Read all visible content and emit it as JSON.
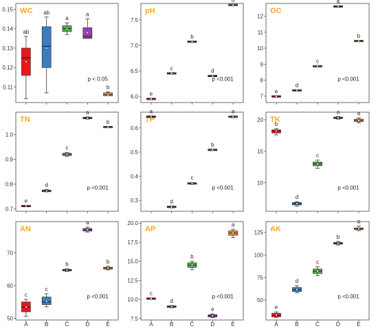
{
  "colors": {
    "title": "#F5A623",
    "frame": "#444444",
    "groups": {
      "A": "#E41A1C",
      "B": "#3A7DBF",
      "C": "#4DAF4A",
      "D": "#9C3FB5",
      "E": "#F08A24"
    }
  },
  "chart_data": [
    {
      "type": "box",
      "title": "WC",
      "ptext": "p < 0.05",
      "ylim": [
        0.102,
        0.153
      ],
      "yticks": [
        {
          "v": 0.11,
          "l": "0.11"
        },
        {
          "v": 0.12,
          "l": "0.12"
        },
        {
          "v": 0.13,
          "l": "0.13"
        },
        {
          "v": 0.14,
          "l": "0.14"
        },
        {
          "v": 0.15,
          "l": "0.15"
        }
      ],
      "categories": [
        "A",
        "B",
        "C",
        "D",
        "E"
      ],
      "boxes": [
        {
          "g": "A",
          "min": 0.104,
          "q1": 0.116,
          "med": 0.125,
          "q3": 0.13,
          "max": 0.136,
          "mean": 0.123,
          "sig": "ab"
        },
        {
          "g": "B",
          "min": 0.107,
          "q1": 0.12,
          "med": 0.131,
          "q3": 0.141,
          "max": 0.146,
          "mean": 0.13,
          "sig": "ab"
        },
        {
          "g": "C",
          "min": 0.137,
          "q1": 0.1385,
          "med": 0.14,
          "q3": 0.1415,
          "max": 0.143,
          "mean": 0.1398,
          "sig": "a"
        },
        {
          "g": "D",
          "min": 0.135,
          "q1": 0.135,
          "med": 0.136,
          "q3": 0.1405,
          "max": 0.145,
          "mean": 0.138,
          "sig": "a"
        },
        {
          "g": "E",
          "min": 0.1055,
          "q1": 0.1055,
          "med": 0.106,
          "q3": 0.107,
          "max": 0.1075,
          "mean": 0.106,
          "sig": "b"
        }
      ]
    },
    {
      "type": "box",
      "title": "pH",
      "ptext": "p <0.001",
      "ylim": [
        5.88,
        7.82
      ],
      "yticks": [
        {
          "v": 6.0,
          "l": "6.0"
        },
        {
          "v": 6.5,
          "l": "6.5"
        },
        {
          "v": 7.0,
          "l": "7.0"
        },
        {
          "v": 7.5,
          "l": "7.5"
        }
      ],
      "categories": [
        "A",
        "B",
        "C",
        "D",
        "E"
      ],
      "boxes": [
        {
          "g": "A",
          "min": 5.94,
          "q1": 5.945,
          "med": 5.95,
          "q3": 5.955,
          "max": 5.96,
          "mean": 5.95,
          "sig": "e"
        },
        {
          "g": "B",
          "min": 6.44,
          "q1": 6.445,
          "med": 6.45,
          "q3": 6.455,
          "max": 6.46,
          "mean": 6.45,
          "sig": "c"
        },
        {
          "g": "C",
          "min": 7.06,
          "q1": 7.065,
          "med": 7.07,
          "q3": 7.075,
          "max": 7.08,
          "mean": 7.07,
          "sig": "b"
        },
        {
          "g": "D",
          "min": 6.39,
          "q1": 6.395,
          "med": 6.4,
          "q3": 6.405,
          "max": 6.41,
          "mean": 6.4,
          "sig": "d"
        },
        {
          "g": "E",
          "min": 7.78,
          "q1": 7.785,
          "med": 7.79,
          "q3": 7.795,
          "max": 7.8,
          "mean": 7.79,
          "sig": "a"
        }
      ]
    },
    {
      "type": "box",
      "title": "OC",
      "ptext": "p <0.001",
      "ylim": [
        6.6,
        12.8
      ],
      "yticks": [
        {
          "v": 7,
          "l": "7"
        },
        {
          "v": 8,
          "l": "8"
        },
        {
          "v": 9,
          "l": "9"
        },
        {
          "v": 10,
          "l": "10"
        },
        {
          "v": 11,
          "l": "11"
        },
        {
          "v": 12,
          "l": "12"
        }
      ],
      "categories": [
        "A",
        "B",
        "C",
        "D",
        "E"
      ],
      "boxes": [
        {
          "g": "A",
          "min": 6.95,
          "q1": 6.97,
          "med": 6.98,
          "q3": 6.99,
          "max": 7.01,
          "mean": 6.98,
          "sig": "e"
        },
        {
          "g": "B",
          "min": 7.33,
          "q1": 7.35,
          "med": 7.36,
          "q3": 7.37,
          "max": 7.39,
          "mean": 7.36,
          "sig": "d"
        },
        {
          "g": "C",
          "min": 8.84,
          "q1": 8.86,
          "med": 8.87,
          "q3": 8.88,
          "max": 8.9,
          "mean": 8.87,
          "sig": "c"
        },
        {
          "g": "D",
          "min": 12.58,
          "q1": 12.6,
          "med": 12.61,
          "q3": 12.62,
          "max": 12.64,
          "mean": 12.61,
          "sig": "a"
        },
        {
          "g": "E",
          "min": 10.42,
          "q1": 10.44,
          "med": 10.45,
          "q3": 10.46,
          "max": 10.48,
          "mean": 10.45,
          "sig": "b"
        }
      ]
    },
    {
      "type": "box",
      "title": "TN",
      "ptext": "p <0.001",
      "ylim": [
        0.69,
        1.09
      ],
      "yticks": [
        {
          "v": 0.7,
          "l": "0.7"
        },
        {
          "v": 0.8,
          "l": "0.8"
        },
        {
          "v": 0.9,
          "l": "0.9"
        },
        {
          "v": 1.0,
          "l": "1.0"
        }
      ],
      "categories": [
        "A",
        "B",
        "C",
        "D",
        "E"
      ],
      "boxes": [
        {
          "g": "A",
          "min": 0.709,
          "q1": 0.71,
          "med": 0.711,
          "q3": 0.712,
          "max": 0.713,
          "mean": 0.711,
          "sig": "e"
        },
        {
          "g": "B",
          "min": 0.768,
          "q1": 0.77,
          "med": 0.772,
          "q3": 0.775,
          "max": 0.778,
          "mean": 0.772,
          "sig": "d"
        },
        {
          "g": "C",
          "min": 0.912,
          "q1": 0.915,
          "med": 0.92,
          "q3": 0.924,
          "max": 0.927,
          "mean": 0.92,
          "sig": "c"
        },
        {
          "g": "D",
          "min": 1.062,
          "q1": 1.064,
          "med": 1.066,
          "q3": 1.069,
          "max": 1.071,
          "mean": 1.066,
          "sig": "a"
        },
        {
          "g": "E",
          "min": 1.028,
          "q1": 1.029,
          "med": 1.03,
          "q3": 1.031,
          "max": 1.032,
          "mean": 1.03,
          "sig": "b"
        }
      ]
    },
    {
      "type": "box",
      "title": "TP",
      "ptext": "p <0.001",
      "ylim": [
        0.255,
        0.665
      ],
      "yticks": [
        {
          "v": 0.3,
          "l": "0.3"
        },
        {
          "v": 0.4,
          "l": "0.4"
        },
        {
          "v": 0.5,
          "l": "0.5"
        },
        {
          "v": 0.6,
          "l": "0.6"
        }
      ],
      "categories": [
        "A",
        "B",
        "C",
        "D",
        "E"
      ],
      "boxes": [
        {
          "g": "A",
          "min": 0.642,
          "q1": 0.644,
          "med": 0.646,
          "q3": 0.648,
          "max": 0.65,
          "mean": 0.646,
          "sig": "a"
        },
        {
          "g": "B",
          "min": 0.269,
          "q1": 0.271,
          "med": 0.273,
          "q3": 0.275,
          "max": 0.277,
          "mean": 0.273,
          "sig": "d"
        },
        {
          "g": "C",
          "min": 0.366,
          "q1": 0.368,
          "med": 0.37,
          "q3": 0.372,
          "max": 0.374,
          "mean": 0.37,
          "sig": "c"
        },
        {
          "g": "D",
          "min": 0.507,
          "q1": 0.508,
          "med": 0.509,
          "q3": 0.51,
          "max": 0.511,
          "mean": 0.509,
          "sig": "b"
        },
        {
          "g": "E",
          "min": 0.642,
          "q1": 0.644,
          "med": 0.646,
          "q3": 0.648,
          "max": 0.65,
          "mean": 0.646,
          "sig": "a"
        }
      ]
    },
    {
      "type": "box",
      "title": "TK",
      "ptext": "p <0.001",
      "ylim": [
        5.5,
        21.2
      ],
      "yticks": [
        {
          "v": 10,
          "l": "10"
        },
        {
          "v": 15,
          "l": "15"
        },
        {
          "v": 20,
          "l": "20"
        }
      ],
      "categories": [
        "A",
        "B",
        "C",
        "D",
        "E"
      ],
      "boxes": [
        {
          "g": "A",
          "min": 17.6,
          "q1": 17.9,
          "med": 18.2,
          "q3": 18.4,
          "max": 18.6,
          "mean": 18.2,
          "sig": "b"
        },
        {
          "g": "B",
          "min": 6.3,
          "q1": 6.5,
          "med": 6.7,
          "q3": 6.9,
          "max": 7.0,
          "mean": 6.7,
          "sig": "d"
        },
        {
          "g": "C",
          "min": 12.3,
          "q1": 12.7,
          "med": 13.0,
          "q3": 13.3,
          "max": 13.6,
          "mean": 13.0,
          "sig": "c"
        },
        {
          "g": "D",
          "min": 20.1,
          "q1": 20.2,
          "med": 20.3,
          "q3": 20.4,
          "max": 20.5,
          "mean": 20.3,
          "sig": "a"
        },
        {
          "g": "E",
          "min": 19.5,
          "q1": 19.7,
          "med": 19.9,
          "q3": 20.1,
          "max": 20.3,
          "mean": 19.9,
          "sig": "a"
        }
      ]
    },
    {
      "type": "box",
      "title": "AN",
      "ptext": "p <0.001",
      "ylim": [
        49.5,
        79.5
      ],
      "yticks": [
        {
          "v": 50,
          "l": "50"
        },
        {
          "v": 60,
          "l": "60"
        },
        {
          "v": 70,
          "l": "70"
        }
      ],
      "categories": [
        "A",
        "B",
        "C",
        "D",
        "E"
      ],
      "boxes": [
        {
          "g": "A",
          "min": 50.6,
          "q1": 52.0,
          "med": 53.5,
          "q3": 55.0,
          "max": 55.8,
          "mean": 53.5,
          "sig": "c"
        },
        {
          "g": "B",
          "min": 53.5,
          "q1": 54.2,
          "med": 55.0,
          "q3": 56.5,
          "max": 57.5,
          "mean": 55.2,
          "sig": "c"
        },
        {
          "g": "C",
          "min": 64.3,
          "q1": 64.5,
          "med": 64.7,
          "q3": 64.9,
          "max": 65.1,
          "mean": 64.7,
          "sig": "b"
        },
        {
          "g": "D",
          "min": 76.3,
          "q1": 76.6,
          "med": 77.0,
          "q3": 77.4,
          "max": 77.8,
          "mean": 77.0,
          "sig": "a"
        },
        {
          "g": "E",
          "min": 64.8,
          "q1": 65.0,
          "med": 65.3,
          "q3": 65.6,
          "max": 65.9,
          "mean": 65.3,
          "sig": "b"
        }
      ]
    },
    {
      "type": "box",
      "title": "AP",
      "ptext": "p <0.001",
      "ylim": [
        7.3,
        20.2
      ],
      "yticks": [
        {
          "v": 7.5,
          "l": "7.5"
        },
        {
          "v": 10.0,
          "l": "10.0"
        },
        {
          "v": 12.5,
          "l": "12.5"
        },
        {
          "v": 15.0,
          "l": "15.0"
        },
        {
          "v": 17.5,
          "l": "17.5"
        },
        {
          "v": 20.0,
          "l": "20.0"
        }
      ],
      "categories": [
        "A",
        "B",
        "C",
        "D",
        "E"
      ],
      "boxes": [
        {
          "g": "A",
          "min": 10.0,
          "q1": 10.05,
          "med": 10.1,
          "q3": 10.15,
          "max": 10.2,
          "mean": 10.1,
          "sig": "c"
        },
        {
          "g": "B",
          "min": 8.9,
          "q1": 8.95,
          "med": 9.05,
          "q3": 9.15,
          "max": 9.2,
          "mean": 9.05,
          "sig": "d"
        },
        {
          "g": "C",
          "min": 13.9,
          "q1": 14.2,
          "med": 14.5,
          "q3": 14.8,
          "max": 15.0,
          "mean": 14.5,
          "sig": "b"
        },
        {
          "g": "D",
          "min": 7.6,
          "q1": 7.7,
          "med": 7.85,
          "q3": 8.0,
          "max": 8.1,
          "mean": 7.85,
          "sig": "e"
        },
        {
          "g": "E",
          "min": 18.1,
          "q1": 18.4,
          "med": 18.7,
          "q3": 19.0,
          "max": 19.2,
          "mean": 18.7,
          "sig": "a"
        }
      ]
    },
    {
      "type": "box",
      "title": "AK",
      "ptext": "p <0.001",
      "ylim": [
        28,
        137
      ],
      "yticks": [
        {
          "v": 50,
          "l": "50"
        },
        {
          "v": 75,
          "l": "75"
        },
        {
          "v": 100,
          "l": "100"
        },
        {
          "v": 125,
          "l": "125"
        }
      ],
      "categories": [
        "A",
        "B",
        "C",
        "D",
        "E"
      ],
      "boxes": [
        {
          "g": "A",
          "min": 31,
          "q1": 31.5,
          "med": 33,
          "q3": 35.5,
          "max": 37,
          "mean": 33.5,
          "sig": "e"
        },
        {
          "g": "B",
          "min": 58,
          "q1": 59.5,
          "med": 61.5,
          "q3": 64,
          "max": 66,
          "mean": 61.8,
          "sig": "d"
        },
        {
          "g": "C",
          "min": 77,
          "q1": 79.5,
          "med": 82,
          "q3": 84.5,
          "max": 87,
          "mean": 82,
          "sig": "c"
        },
        {
          "g": "D",
          "min": 111,
          "q1": 112,
          "med": 113,
          "q3": 114,
          "max": 115,
          "mean": 113,
          "sig": "b"
        },
        {
          "g": "E",
          "min": 127,
          "q1": 128,
          "med": 129,
          "q3": 130,
          "max": 132,
          "mean": 129,
          "sig": "a"
        }
      ]
    }
  ]
}
